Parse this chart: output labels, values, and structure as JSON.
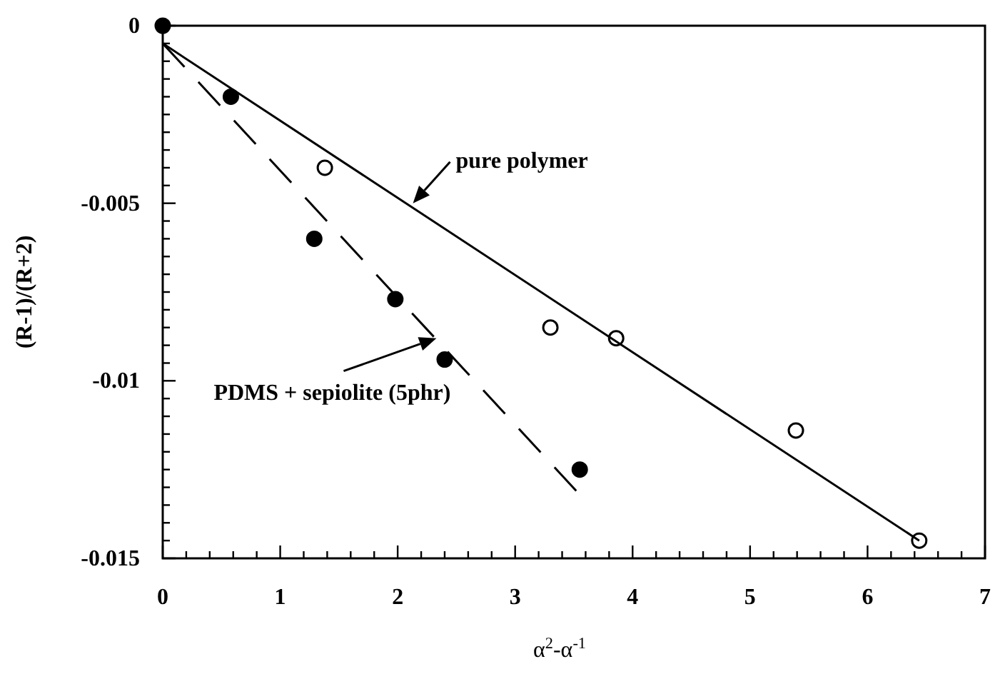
{
  "chart_data": {
    "type": "scatter",
    "xlabel": "α$^{2}$-α$^{-1}$",
    "ylabel": "(R-1)/(R+2)",
    "xlim": [
      0,
      7
    ],
    "ylim": [
      -0.015,
      0
    ],
    "xticks": [
      0,
      {
        "value": 0.2,
        "label": null
      },
      {
        "value": 0.4,
        "label": null
      },
      {
        "value": 0.6,
        "label": null
      },
      {
        "value": 0.8,
        "label": null
      },
      1,
      {
        "value": 1.2,
        "label": null
      },
      {
        "value": 1.4,
        "label": null
      },
      {
        "value": 1.6,
        "label": null
      },
      {
        "value": 1.8,
        "label": null
      },
      2,
      {
        "value": 2.2,
        "label": null
      },
      {
        "value": 2.4,
        "label": null
      },
      {
        "value": 2.6,
        "label": null
      },
      {
        "value": 2.8,
        "label": null
      },
      3,
      {
        "value": 3.2,
        "label": null
      },
      {
        "value": 3.4,
        "label": null
      },
      {
        "value": 3.6,
        "label": null
      },
      {
        "value": 3.8,
        "label": null
      },
      4,
      {
        "value": 4.2,
        "label": null
      },
      {
        "value": 4.4,
        "label": null
      },
      {
        "value": 4.6,
        "label": null
      },
      {
        "value": 4.8,
        "label": null
      },
      5,
      {
        "value": 5.2,
        "label": null
      },
      {
        "value": 5.4,
        "label": null
      },
      {
        "value": 5.6,
        "label": null
      },
      {
        "value": 5.8,
        "label": null
      },
      6,
      {
        "value": 6.2,
        "label": null
      },
      {
        "value": 6.4,
        "label": null
      },
      {
        "value": 6.6,
        "label": null
      },
      {
        "value": 6.8,
        "label": null
      },
      7
    ],
    "yticks": [
      0,
      {
        "value": -0.0005,
        "label": null
      },
      {
        "value": -0.001,
        "label": null
      },
      {
        "value": -0.0015,
        "label": null
      },
      {
        "value": -0.002,
        "label": null
      },
      {
        "value": -0.0025,
        "label": null
      },
      {
        "value": -0.003,
        "label": null
      },
      {
        "value": -0.0035,
        "label": null
      },
      {
        "value": -0.004,
        "label": null
      },
      {
        "value": -0.0045,
        "label": null
      },
      -0.005,
      {
        "value": -0.0055,
        "label": null
      },
      {
        "value": -0.006,
        "label": null
      },
      {
        "value": -0.0065,
        "label": null
      },
      {
        "value": -0.007,
        "label": null
      },
      {
        "value": -0.0075,
        "label": null
      },
      {
        "value": -0.008,
        "label": null
      },
      {
        "value": -0.0085,
        "label": null
      },
      {
        "value": -0.009,
        "label": null
      },
      {
        "value": -0.0095,
        "label": null
      },
      -0.01,
      {
        "value": -0.0105,
        "label": null
      },
      {
        "value": -0.011,
        "label": null
      },
      {
        "value": -0.0115,
        "label": null
      },
      {
        "value": -0.012,
        "label": null
      },
      {
        "value": -0.0125,
        "label": null
      },
      {
        "value": -0.013,
        "label": null
      },
      {
        "value": -0.0135,
        "label": null
      },
      {
        "value": -0.014,
        "label": null
      },
      {
        "value": -0.0145,
        "label": null
      },
      -0.015
    ],
    "grid": false,
    "marker": "circle",
    "series": [
      {
        "type": "scatter",
        "color": "#000000",
        "x": [
          0,
          0.58,
          1.29,
          1.98,
          2.4,
          3.55
        ],
        "values": [
          0,
          -0.002,
          -0.006,
          -0.0077,
          -0.0094,
          -0.0125
        ]
      },
      {
        "type": "scatter",
        "color": "#ffffff",
        "x": [
          1.38,
          3.3,
          3.86,
          5.39,
          6.44
        ],
        "values": [
          -0.004,
          -0.0085,
          -0.0088,
          -0.0114,
          -0.0145
        ]
      },
      {
        "type": "line",
        "color": "#000000",
        "line_style": "solid",
        "marker": "none",
        "x": [
          0,
          6.44
        ],
        "values": [
          -0.0005,
          -0.0145
        ]
      },
      {
        "type": "line",
        "color": "#000000",
        "line_style": "dashed",
        "marker": "none",
        "x": [
          0,
          3.52
        ],
        "values": [
          -0.0005,
          -0.0131
        ]
      }
    ],
    "annotations": [
      {
        "text": "pure polymer",
        "x": 2.13,
        "y": -0.005
      },
      {
        "text": "PDMS + sepiolite (5phr)",
        "x": 2.33,
        "y": -0.0088
      }
    ]
  }
}
